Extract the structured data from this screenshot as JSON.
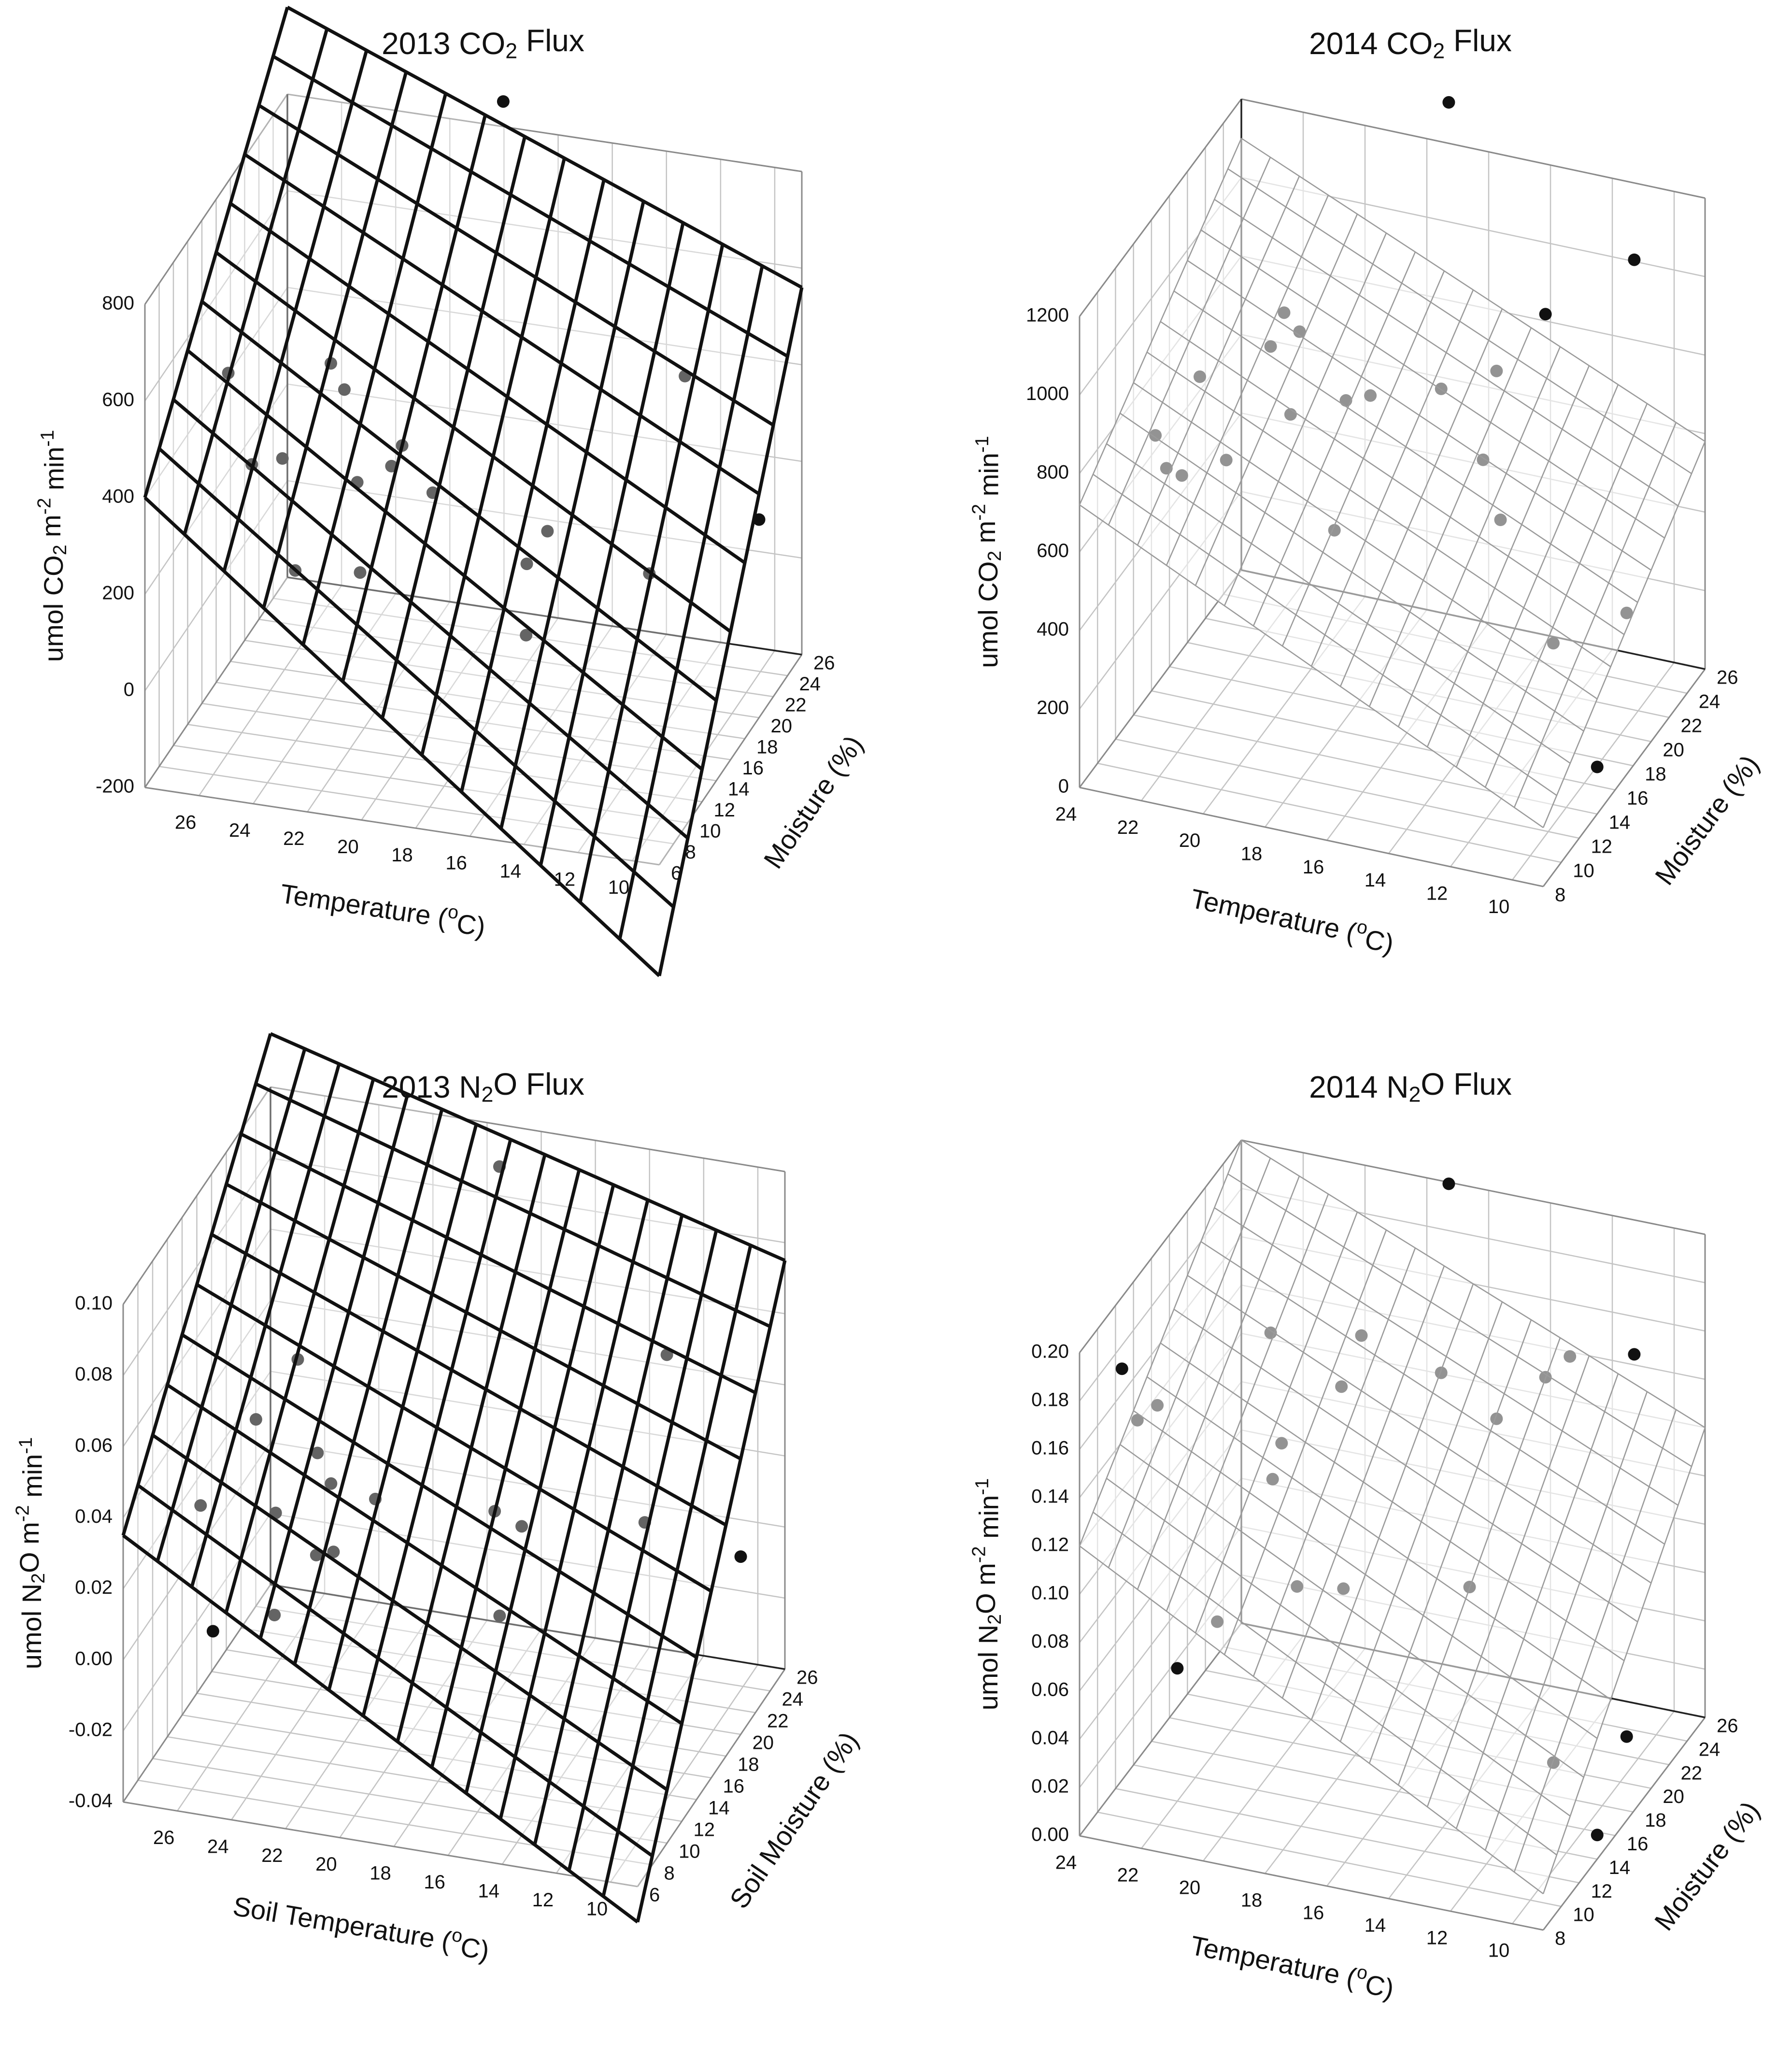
{
  "figure": {
    "caption_panels": 4
  },
  "chart_data": [
    {
      "type": "scatter",
      "subtype": "3d-scatter-with-regression-plane",
      "title": "2013 CO2 Flux",
      "title_parts": {
        "pre": "2013 CO",
        "sub": "2",
        "post": " Flux"
      },
      "xlabel": "Temperature (oC)",
      "xlabel_parts": {
        "pre": "Temperature (",
        "sup": "o",
        "post": "C)"
      },
      "ylabel": "Moisture (%)",
      "zlabel": "umol CO2 m-2 min-1",
      "zlabel_parts": {
        "a": "umol CO",
        "sub": "2",
        "b": " m",
        "sup1": "-2",
        "c": " min",
        "sup2": "-1"
      },
      "xlim": [
        9,
        28
      ],
      "ylim": [
        6,
        26
      ],
      "zlim": [
        -200,
        800
      ],
      "x_ticks": [
        26,
        24,
        22,
        20,
        18,
        16,
        14,
        12,
        10
      ],
      "y_ticks": [
        6,
        8,
        10,
        12,
        14,
        16,
        18,
        20,
        22,
        24,
        26
      ],
      "z_ticks": [
        -200,
        0,
        200,
        400,
        600,
        800
      ],
      "surface_style": "heavy",
      "surface": [
        {
          "x": 28,
          "y": 6,
          "z": 400
        },
        {
          "x": 28,
          "y": 26,
          "z": 980
        },
        {
          "x": 9,
          "y": 26,
          "z": 560
        },
        {
          "x": 9,
          "y": 6,
          "z": -430
        }
      ],
      "surface_grid": [
        13,
        10
      ],
      "points": [
        {
          "x": 26.5,
          "y": 12,
          "z": 540
        },
        {
          "x": 25.5,
          "y": 11.5,
          "z": 370
        },
        {
          "x": 24.5,
          "y": 12,
          "z": 380
        },
        {
          "x": 23.5,
          "y": 10,
          "z": 200
        },
        {
          "x": 23.5,
          "y": 15,
          "z": 520
        },
        {
          "x": 23,
          "y": 15,
          "z": 470
        },
        {
          "x": 22,
          "y": 13,
          "z": 330
        },
        {
          "x": 21.5,
          "y": 11.5,
          "z": 180
        },
        {
          "x": 21,
          "y": 14,
          "z": 350
        },
        {
          "x": 21,
          "y": 15.5,
          "z": 360
        },
        {
          "x": 20,
          "y": 16,
          "z": 260
        },
        {
          "x": 19.5,
          "y": 24,
          "z": 900
        },
        {
          "x": 16,
          "y": 14,
          "z": 190
        },
        {
          "x": 15.5,
          "y": 15,
          "z": 240
        },
        {
          "x": 15.5,
          "y": 12,
          "z": 90
        },
        {
          "x": 12,
          "y": 21,
          "z": 460
        },
        {
          "x": 12,
          "y": 16,
          "z": 160
        },
        {
          "x": 9,
          "y": 20,
          "z": 210
        }
      ]
    },
    {
      "type": "scatter",
      "subtype": "3d-scatter-with-regression-plane",
      "title": "2014 CO2 Flux",
      "title_parts": {
        "pre": "2014 CO",
        "sub": "2",
        "post": " Flux"
      },
      "xlabel": "Temperature (oC)",
      "xlabel_parts": {
        "pre": "Temperature (",
        "sup": "o",
        "post": "C)"
      },
      "ylabel": "Moisture (%)",
      "zlabel": "umol CO2 m-2 min-1",
      "zlabel_parts": {
        "a": "umol CO",
        "sub": "2",
        "b": " m",
        "sup1": "-2",
        "c": " min",
        "sup2": "-1"
      },
      "xlim": [
        9,
        24
      ],
      "ylim": [
        8,
        26
      ],
      "zlim": [
        0,
        1200
      ],
      "x_ticks": [
        24,
        22,
        20,
        18,
        16,
        14,
        12,
        10
      ],
      "y_ticks": [
        8,
        10,
        12,
        14,
        16,
        18,
        20,
        22,
        24,
        26
      ],
      "z_ticks": [
        0,
        200,
        400,
        600,
        800,
        1000,
        1200
      ],
      "surface_style": "light",
      "surface": [
        {
          "x": 24,
          "y": 8,
          "z": 720
        },
        {
          "x": 24,
          "y": 26,
          "z": 1100
        },
        {
          "x": 9,
          "y": 26,
          "z": 580
        },
        {
          "x": 9,
          "y": 8,
          "z": 150
        }
      ],
      "surface_grid": [
        16,
        12
      ],
      "points": [
        {
          "x": 23,
          "y": 13,
          "z": 760
        },
        {
          "x": 22.5,
          "y": 12.5,
          "z": 700
        },
        {
          "x": 22,
          "y": 12.5,
          "z": 690
        },
        {
          "x": 22,
          "y": 14.5,
          "z": 880
        },
        {
          "x": 21,
          "y": 14,
          "z": 700
        },
        {
          "x": 20,
          "y": 15.5,
          "z": 960
        },
        {
          "x": 20,
          "y": 17,
          "z": 1000
        },
        {
          "x": 19.5,
          "y": 17,
          "z": 960
        },
        {
          "x": 19.5,
          "y": 16,
          "z": 780
        },
        {
          "x": 18,
          "y": 17,
          "z": 810
        },
        {
          "x": 17.5,
          "y": 18,
          "z": 800
        },
        {
          "x": 17.5,
          "y": 14,
          "z": 580
        },
        {
          "x": 17,
          "y": 25,
          "z": 1340
        },
        {
          "x": 15.5,
          "y": 19,
          "z": 820
        },
        {
          "x": 14,
          "y": 20,
          "z": 860
        },
        {
          "x": 14,
          "y": 18.5,
          "z": 680
        },
        {
          "x": 13,
          "y": 22,
          "z": 960
        },
        {
          "x": 13,
          "y": 17,
          "z": 590
        },
        {
          "x": 11,
          "y": 25,
          "z": 1040
        },
        {
          "x": 11,
          "y": 16,
          "z": 340
        },
        {
          "x": 9.5,
          "y": 19,
          "z": 350
        },
        {
          "x": 9,
          "y": 14,
          "z": 120
        }
      ]
    },
    {
      "type": "scatter",
      "subtype": "3d-scatter-with-regression-plane",
      "title": "2013 N2O Flux",
      "title_parts": {
        "pre": "2013 N",
        "sub": "2",
        "post": "O Flux"
      },
      "xlabel": "Soil Temperature (oC)",
      "xlabel_parts": {
        "pre": "Soil Temperature (",
        "sup": "o",
        "post": "C)"
      },
      "ylabel": "Soil Moisture (%)",
      "zlabel": "umol N2O m-2 min-1",
      "zlabel_parts": {
        "a": "umol N",
        "sub": "2",
        "b": "O m",
        "sup1": "-2",
        "c": " min",
        "sup2": "-1"
      },
      "xlim": [
        9,
        28
      ],
      "ylim": [
        6,
        26
      ],
      "zlim": [
        -0.04,
        0.1
      ],
      "x_ticks": [
        26,
        24,
        22,
        20,
        18,
        16,
        14,
        12,
        10
      ],
      "y_ticks": [
        6,
        8,
        10,
        12,
        14,
        16,
        18,
        20,
        22,
        24,
        26
      ],
      "z_ticks": [
        -0.04,
        -0.02,
        0.0,
        0.02,
        0.04,
        0.06,
        0.08,
        0.1
      ],
      "z_tick_labels": [
        "-0.04",
        "-0.02",
        "0.00",
        "0.02",
        "0.04",
        "0.06",
        "0.08",
        "0.10"
      ],
      "surface_style": "heavy",
      "surface": [
        {
          "x": 28,
          "y": 6,
          "z": 0.035
        },
        {
          "x": 28,
          "y": 26,
          "z": 0.115
        },
        {
          "x": 9,
          "y": 26,
          "z": 0.075
        },
        {
          "x": 9,
          "y": 6,
          "z": -0.05
        }
      ],
      "surface_grid": [
        15,
        10
      ],
      "points": [
        {
          "x": 26.5,
          "y": 11,
          "z": 0.03
        },
        {
          "x": 25.5,
          "y": 9,
          "z": 0.002
        },
        {
          "x": 25,
          "y": 13,
          "z": 0.05
        },
        {
          "x": 24,
          "y": 12,
          "z": 0.028
        },
        {
          "x": 24,
          "y": 15,
          "z": 0.062
        },
        {
          "x": 23.5,
          "y": 10,
          "z": 0.006
        },
        {
          "x": 23,
          "y": 14,
          "z": 0.04
        },
        {
          "x": 22.5,
          "y": 14,
          "z": 0.032
        },
        {
          "x": 22.5,
          "y": 12,
          "z": 0.018
        },
        {
          "x": 22,
          "y": 12.5,
          "z": 0.018
        },
        {
          "x": 21,
          "y": 14.5,
          "z": 0.028
        },
        {
          "x": 19,
          "y": 24,
          "z": 0.095
        },
        {
          "x": 17,
          "y": 16,
          "z": 0.025
        },
        {
          "x": 16,
          "y": 16,
          "z": 0.022
        },
        {
          "x": 16,
          "y": 13,
          "z": 0.006
        },
        {
          "x": 12,
          "y": 21,
          "z": 0.06
        },
        {
          "x": 12,
          "y": 18,
          "z": 0.022
        },
        {
          "x": 9,
          "y": 20,
          "z": 0.01
        }
      ]
    },
    {
      "type": "scatter",
      "subtype": "3d-scatter-with-regression-plane",
      "title": "2014 N2O Flux",
      "title_parts": {
        "pre": "2014 N",
        "sub": "2",
        "post": "O Flux"
      },
      "xlabel": "Temperature (oC)",
      "xlabel_parts": {
        "pre": "Temperature (",
        "sup": "o",
        "post": "C)"
      },
      "ylabel": "Moisture (%)",
      "zlabel": "umol N2O m-2 min-1",
      "zlabel_parts": {
        "a": "umol N",
        "sub": "2",
        "b": "O m",
        "sup1": "-2",
        "c": " min",
        "sup2": "-1"
      },
      "xlim": [
        9,
        24
      ],
      "ylim": [
        8,
        26
      ],
      "zlim": [
        0.0,
        0.2
      ],
      "x_ticks": [
        24,
        22,
        20,
        18,
        16,
        14,
        12,
        10
      ],
      "y_ticks": [
        8,
        10,
        12,
        14,
        16,
        18,
        20,
        22,
        24,
        26
      ],
      "z_ticks": [
        0.0,
        0.02,
        0.04,
        0.06,
        0.08,
        0.1,
        0.12,
        0.14,
        0.16,
        0.18,
        0.2
      ],
      "z_tick_labels": [
        "0.00",
        "0.02",
        "0.04",
        "0.06",
        "0.08",
        "0.10",
        "0.12",
        "0.14",
        "0.16",
        "0.18",
        "0.20"
      ],
      "surface_style": "light",
      "surface": [
        {
          "x": 24,
          "y": 8,
          "z": 0.12
        },
        {
          "x": 24,
          "y": 26,
          "z": 0.2
        },
        {
          "x": 9,
          "y": 26,
          "z": 0.12
        },
        {
          "x": 9,
          "y": 8,
          "z": 0.015
        }
      ],
      "surface_grid": [
        16,
        12
      ],
      "points": [
        {
          "x": 23.5,
          "y": 11,
          "z": 0.18
        },
        {
          "x": 23,
          "y": 11,
          "z": 0.16
        },
        {
          "x": 22.5,
          "y": 11.5,
          "z": 0.165
        },
        {
          "x": 22,
          "y": 12,
          "z": 0.055
        },
        {
          "x": 21,
          "y": 13,
          "z": 0.072
        },
        {
          "x": 20,
          "y": 15.5,
          "z": 0.182
        },
        {
          "x": 19.5,
          "y": 15,
          "z": 0.14
        },
        {
          "x": 19.5,
          "y": 14,
          "z": 0.13
        },
        {
          "x": 19,
          "y": 15,
          "z": 0.082
        },
        {
          "x": 18,
          "y": 16.5,
          "z": 0.16
        },
        {
          "x": 17.5,
          "y": 17,
          "z": 0.18
        },
        {
          "x": 17.5,
          "y": 15,
          "z": 0.085
        },
        {
          "x": 17,
          "y": 25,
          "z": 0.205
        },
        {
          "x": 15.5,
          "y": 19,
          "z": 0.16
        },
        {
          "x": 14,
          "y": 20,
          "z": 0.14
        },
        {
          "x": 14,
          "y": 17,
          "z": 0.085
        },
        {
          "x": 13,
          "y": 22,
          "z": 0.15
        },
        {
          "x": 12.5,
          "y": 23,
          "z": 0.155
        },
        {
          "x": 11,
          "y": 25,
          "z": 0.15
        },
        {
          "x": 11,
          "y": 16,
          "z": 0.025
        },
        {
          "x": 9.5,
          "y": 19,
          "z": 0.025
        },
        {
          "x": 9,
          "y": 14,
          "z": 0.01
        }
      ]
    }
  ]
}
